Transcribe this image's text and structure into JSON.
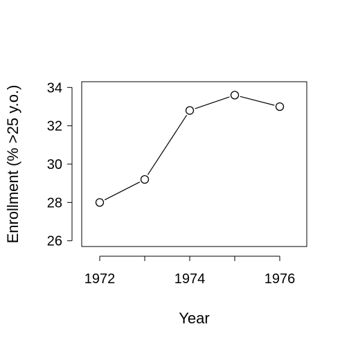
{
  "chart_data": {
    "type": "line",
    "title": "",
    "xlabel": "Year",
    "ylabel": "Enrollment (% >25 y.o.)",
    "x": [
      1972,
      1973,
      1974,
      1975,
      1976
    ],
    "series": [
      {
        "values": [
          28.0,
          29.2,
          32.8,
          33.6,
          33.0
        ]
      }
    ],
    "xlim": [
      1971.6,
      1976.6
    ],
    "ylim": [
      25.7,
      34.3
    ],
    "x_ticks": [
      1972,
      1973,
      1974,
      1975,
      1976
    ],
    "x_tick_labels": [
      "1972",
      "",
      "1974",
      "",
      "1976"
    ],
    "y_ticks": [
      26,
      28,
      30,
      32,
      34
    ],
    "y_tick_labels": [
      "26",
      "28",
      "30",
      "32",
      "34"
    ],
    "grid": false,
    "legend": "none",
    "marker": "open-circle",
    "line_color": "#000000"
  }
}
